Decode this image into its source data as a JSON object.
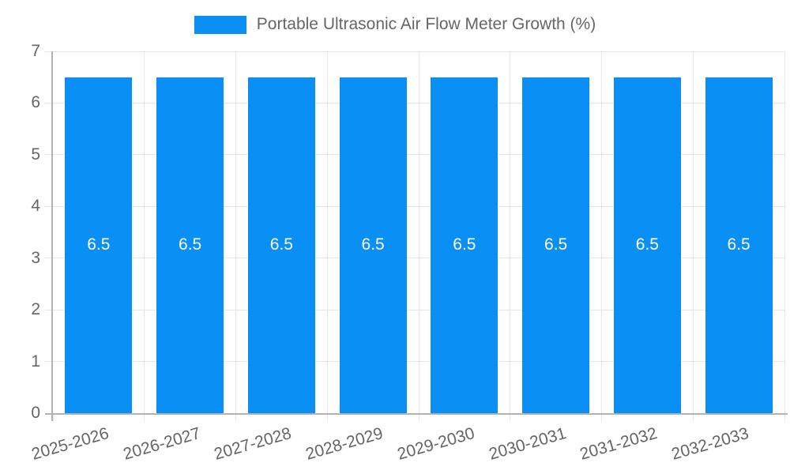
{
  "chart_data": {
    "type": "bar",
    "title": "Portable Ultrasonic Air Flow Meter Growth (%)",
    "categories": [
      "2025-2026",
      "2026-2027",
      "2027-2028",
      "2028-2029",
      "2029-2030",
      "2030-2031",
      "2031-2032",
      "2032-2033"
    ],
    "values": [
      6.5,
      6.5,
      6.5,
      6.5,
      6.5,
      6.5,
      6.5,
      6.5
    ],
    "bar_labels": [
      "6.5",
      "6.5",
      "6.5",
      "6.5",
      "6.5",
      "6.5",
      "6.5",
      "6.5"
    ],
    "xlabel": "",
    "ylabel": "",
    "ylim": [
      0,
      7
    ],
    "y_ticks": [
      0,
      1,
      2,
      3,
      4,
      5,
      6,
      7
    ],
    "grid": true,
    "legend_position": "top",
    "colors": {
      "bar": "#0a8ff4",
      "bar_label_text": "#ffffff",
      "tick_text": "#666666",
      "title_text": "#666666",
      "gridline": "#e6e6e6",
      "axis_line": "#b3b3b3",
      "background": "#ffffff"
    }
  }
}
